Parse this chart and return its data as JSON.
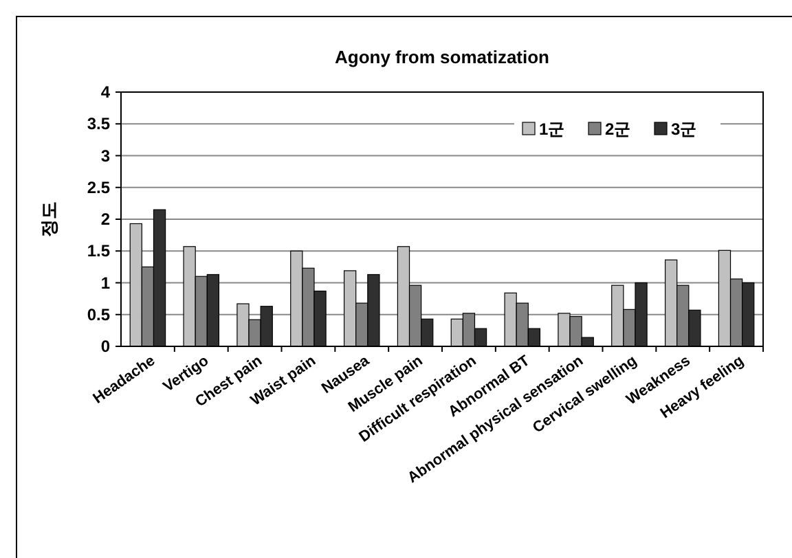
{
  "chart_data": {
    "type": "bar",
    "title": "Agony from somatization",
    "ylabel": "정도",
    "categories": [
      "Headache",
      "Vertigo",
      "Chest pain",
      "Waist pain",
      "Nausea",
      "Muscle pain",
      "Difficult respiration",
      "Abnormal BT",
      "Abnormal physical sensation",
      "Cervical swelling",
      "Weakness",
      "Heavy feeling"
    ],
    "series": [
      {
        "name": "1군",
        "color": "#c0c0c0",
        "values": [
          1.93,
          1.57,
          0.67,
          1.5,
          1.19,
          1.57,
          0.43,
          0.84,
          0.52,
          0.96,
          1.36,
          1.51
        ]
      },
      {
        "name": "2군",
        "color": "#808080",
        "values": [
          1.25,
          1.1,
          0.42,
          1.23,
          0.68,
          0.96,
          0.52,
          0.68,
          0.47,
          0.58,
          0.96,
          1.06
        ]
      },
      {
        "name": "3군",
        "color": "#303030",
        "values": [
          2.15,
          1.13,
          0.63,
          0.87,
          1.13,
          0.43,
          0.28,
          0.28,
          0.14,
          1.0,
          0.57,
          1.0
        ]
      }
    ],
    "ylim": [
      0,
      4
    ],
    "yticks": [
      0,
      0.5,
      1,
      1.5,
      2,
      2.5,
      3,
      3.5,
      4
    ],
    "grid": "y",
    "legend": "top right"
  }
}
